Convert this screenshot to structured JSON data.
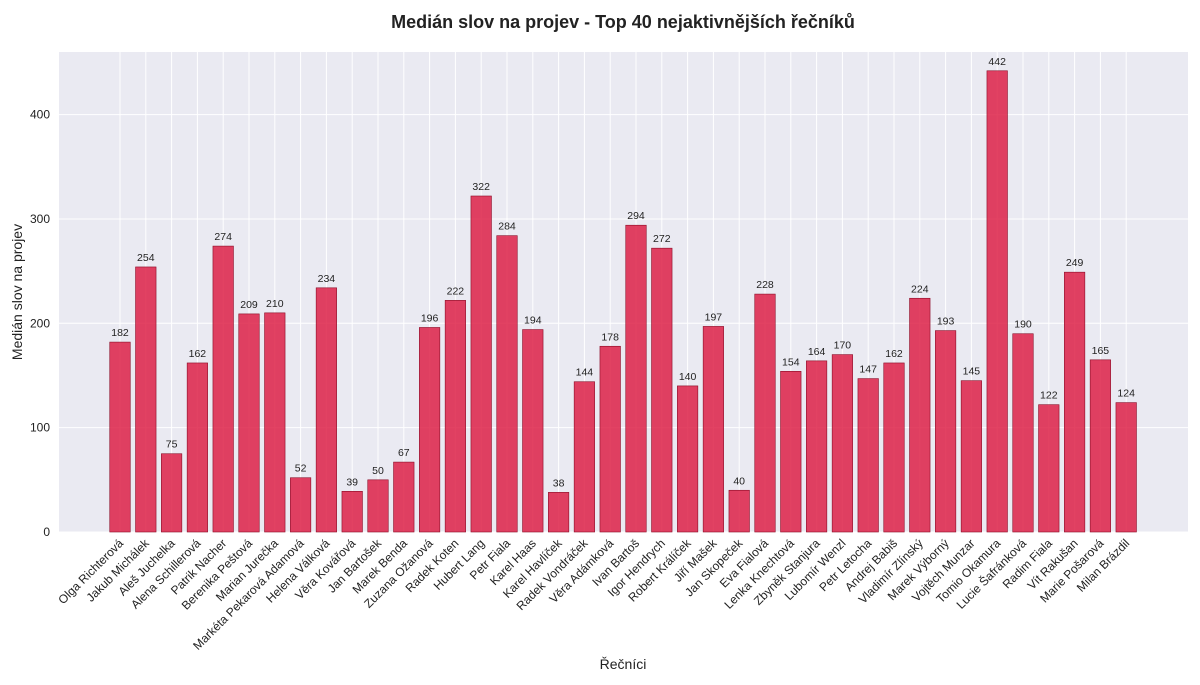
{
  "chart_data": {
    "type": "bar",
    "title": "Medián slov na projev - Top 40 nejaktivnějších řečníků",
    "xlabel": "Řečníci",
    "ylabel": "Medián slov na projev",
    "categories": [
      "Olga Richterová",
      "Jakub Michálek",
      "Aleš Juchelka",
      "Alena Schillerová",
      "Patrik Nacher",
      "Berenika Peštová",
      "Marian Jurečka",
      "Markéta Pekarová Adamová",
      "Helena Válková",
      "Věra Kovářová",
      "Jan Bartošek",
      "Marek Benda",
      "Zuzana Ožanová",
      "Radek Koten",
      "Hubert Lang",
      "Petr Fiala",
      "Karel Haas",
      "Karel Havlíček",
      "Radek Vondráček",
      "Věra Adámková",
      "Ivan Bartoš",
      "Igor Hendrych",
      "Robert Králíček",
      "Jiří Mašek",
      "Jan Skopeček",
      "Eva Fialová",
      "Lenka Knechtová",
      "Zbyněk Stanjura",
      "Lubomír Wenzl",
      "Petr Letocha",
      "Andrej Babiš",
      "Vladimír Zlínský",
      "Marek Výborný",
      "Vojtěch Munzar",
      "Tomio Okamura",
      "Lucie Šafránková",
      "Radim Fiala",
      "Vít Rakušan",
      "Marie Pošarová",
      "Milan Brázdil"
    ],
    "values": [
      182,
      254,
      75,
      162,
      274,
      209,
      210,
      52,
      234,
      39,
      50,
      67,
      196,
      222,
      322,
      284,
      194,
      38,
      144,
      178,
      294,
      272,
      140,
      197,
      40,
      228,
      154,
      164,
      170,
      147,
      162,
      224,
      193,
      145,
      442,
      190,
      122,
      249,
      165,
      124
    ],
    "ylim": [
      0,
      460
    ],
    "yticks": [
      0,
      100,
      200,
      300,
      400
    ],
    "grid": true,
    "colors": {
      "bar": "#dc143c",
      "bar_edge": "#8b0a25",
      "plot_background": "#eaeaf2",
      "grid": "#ffffff"
    }
  }
}
